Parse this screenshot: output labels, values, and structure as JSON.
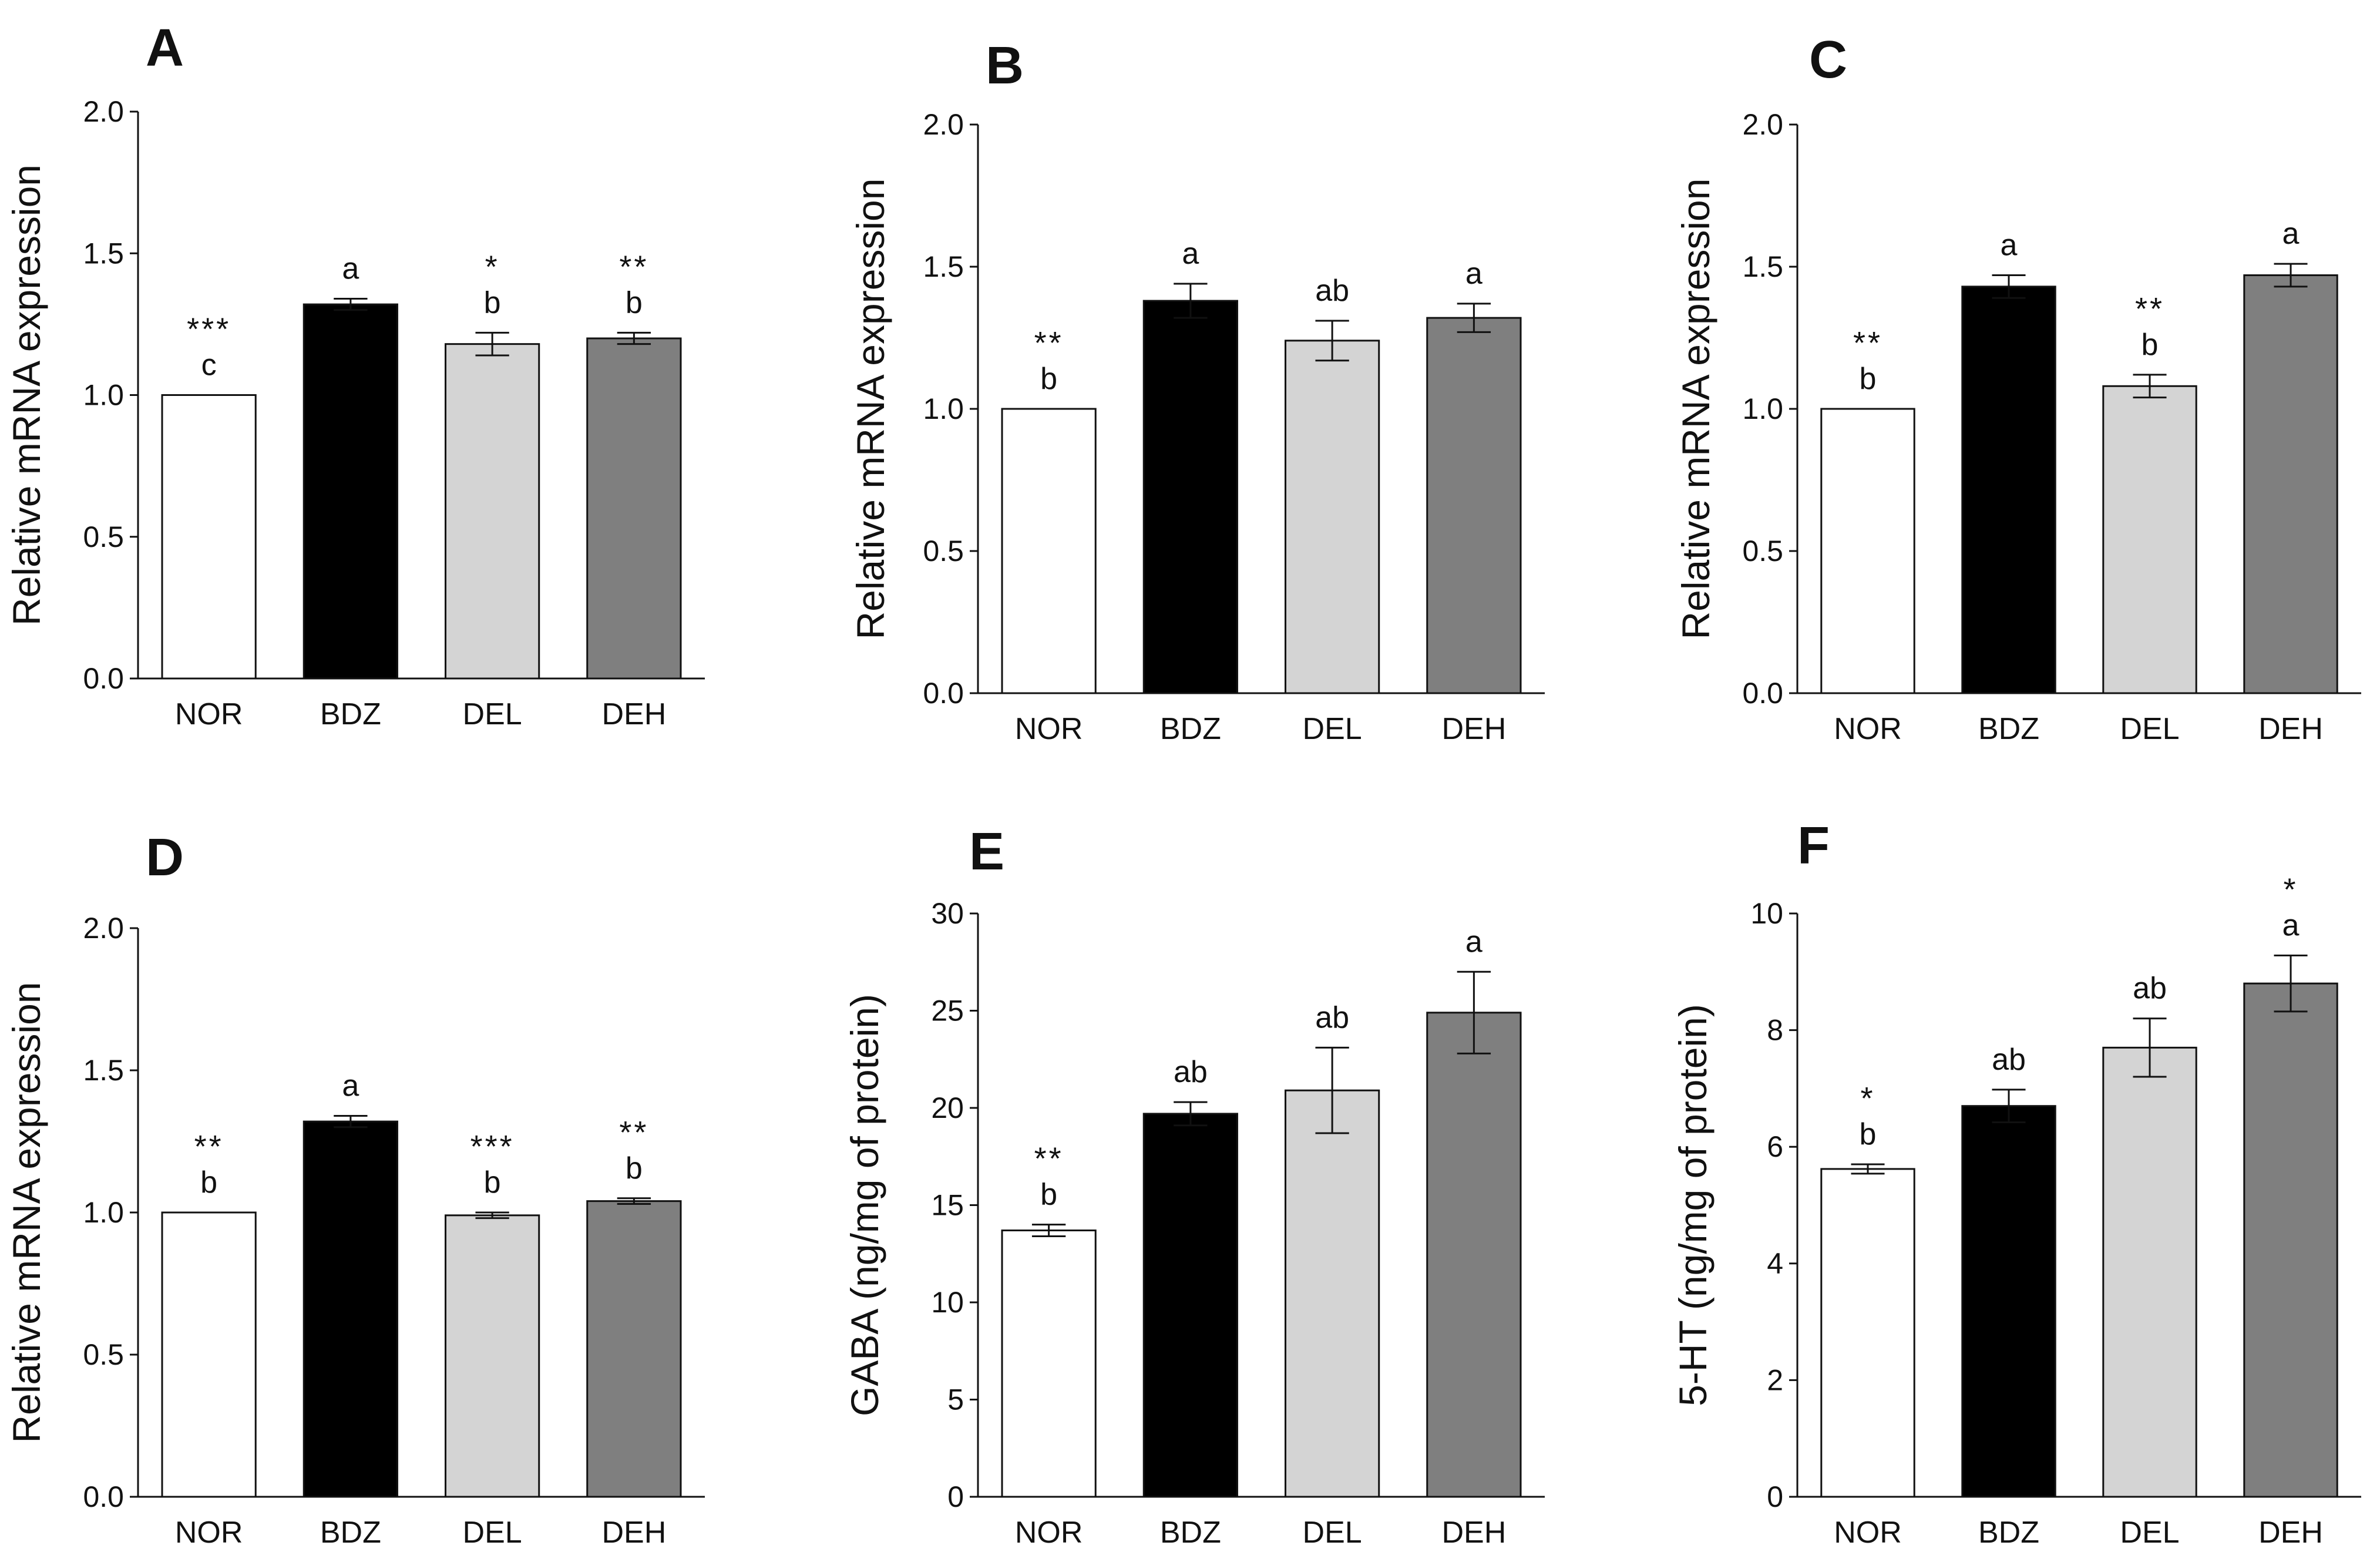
{
  "chart_data": [
    {
      "panel": "A",
      "type": "bar",
      "categories": [
        "NOR",
        "BDZ",
        "DEL",
        "DEH"
      ],
      "values": [
        1.0,
        1.32,
        1.18,
        1.2
      ],
      "errors": [
        0,
        0.02,
        0.04,
        0.02
      ],
      "letters": [
        "c",
        "a",
        "b",
        "b"
      ],
      "stars": [
        "***",
        "",
        "*",
        "**"
      ],
      "colors": [
        "#ffffff",
        "#000000",
        "#d4d4d4",
        "#7f7f7f"
      ],
      "ylabel": "Relative mRNA expression",
      "xlabel": "",
      "ylim": [
        0,
        2.0
      ],
      "yticks": [
        "0.0",
        "0.5",
        "1.0",
        "1.5",
        "2.0"
      ]
    },
    {
      "panel": "B",
      "type": "bar",
      "categories": [
        "NOR",
        "BDZ",
        "DEL",
        "DEH"
      ],
      "values": [
        1.0,
        1.38,
        1.24,
        1.32
      ],
      "errors": [
        0,
        0.06,
        0.07,
        0.05
      ],
      "letters": [
        "b",
        "a",
        "ab",
        "a"
      ],
      "stars": [
        "**",
        "",
        "",
        ""
      ],
      "colors": [
        "#ffffff",
        "#000000",
        "#d4d4d4",
        "#7f7f7f"
      ],
      "ylabel": "Relative mRNA expression",
      "xlabel": "",
      "ylim": [
        0,
        2.0
      ],
      "yticks": [
        "0.0",
        "0.5",
        "1.0",
        "1.5",
        "2.0"
      ]
    },
    {
      "panel": "C",
      "type": "bar",
      "categories": [
        "NOR",
        "BDZ",
        "DEL",
        "DEH"
      ],
      "values": [
        1.0,
        1.43,
        1.08,
        1.47
      ],
      "errors": [
        0,
        0.04,
        0.04,
        0.04
      ],
      "letters": [
        "b",
        "a",
        "b",
        "a"
      ],
      "stars": [
        "**",
        "",
        "**",
        ""
      ],
      "colors": [
        "#ffffff",
        "#000000",
        "#d4d4d4",
        "#7f7f7f"
      ],
      "ylabel": "Relative mRNA expression",
      "xlabel": "",
      "ylim": [
        0,
        2.0
      ],
      "yticks": [
        "0.0",
        "0.5",
        "1.0",
        "1.5",
        "2.0"
      ]
    },
    {
      "panel": "D",
      "type": "bar",
      "categories": [
        "NOR",
        "BDZ",
        "DEL",
        "DEH"
      ],
      "values": [
        1.0,
        1.32,
        0.99,
        1.04
      ],
      "errors": [
        0,
        0.02,
        0.01,
        0.01
      ],
      "letters": [
        "b",
        "a",
        "b",
        "b"
      ],
      "stars": [
        "**",
        "",
        "***",
        "**"
      ],
      "colors": [
        "#ffffff",
        "#000000",
        "#d4d4d4",
        "#7f7f7f"
      ],
      "ylabel": "Relative mRNA expression",
      "xlabel": "",
      "ylim": [
        0,
        2.0
      ],
      "yticks": [
        "0.0",
        "0.5",
        "1.0",
        "1.5",
        "2.0"
      ]
    },
    {
      "panel": "E",
      "type": "bar",
      "categories": [
        "NOR",
        "BDZ",
        "DEL",
        "DEH"
      ],
      "values": [
        13.7,
        19.7,
        20.9,
        24.9
      ],
      "errors": [
        0.3,
        0.6,
        2.2,
        2.1
      ],
      "letters": [
        "b",
        "ab",
        "ab",
        "a"
      ],
      "stars": [
        "**",
        "",
        "",
        ""
      ],
      "colors": [
        "#ffffff",
        "#000000",
        "#d4d4d4",
        "#7f7f7f"
      ],
      "ylabel": "GABA  (ng/mg of protein)",
      "xlabel": "",
      "ylim": [
        0,
        30
      ],
      "yticks": [
        "0",
        "5",
        "10",
        "15",
        "20",
        "25",
        "30"
      ]
    },
    {
      "panel": "F",
      "type": "bar",
      "categories": [
        "NOR",
        "BDZ",
        "DEL",
        "DEH"
      ],
      "values": [
        5.62,
        6.7,
        7.7,
        8.8
      ],
      "errors": [
        0.08,
        0.28,
        0.5,
        0.48
      ],
      "letters": [
        "b",
        "ab",
        "ab",
        "a"
      ],
      "stars": [
        "*",
        "",
        "",
        "*"
      ],
      "colors": [
        "#ffffff",
        "#000000",
        "#d4d4d4",
        "#7f7f7f"
      ],
      "ylabel": "5-HT  (ng/mg of protein)",
      "xlabel": "",
      "ylim": [
        0,
        10
      ],
      "yticks": [
        "0",
        "2",
        "4",
        "6",
        "8",
        "10"
      ]
    }
  ]
}
